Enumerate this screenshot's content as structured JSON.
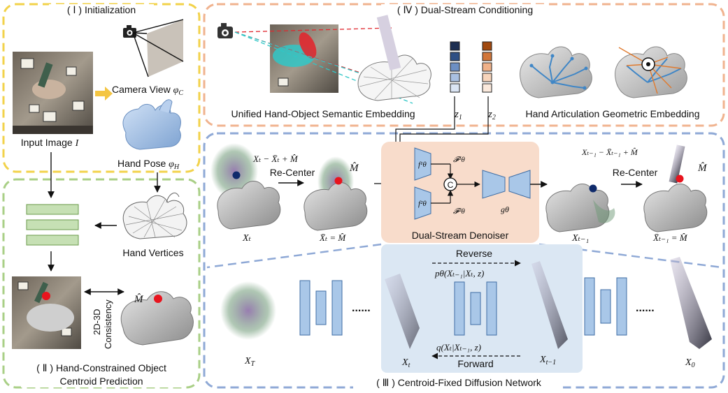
{
  "panels": {
    "p1": {
      "title": "( Ⅰ ) Initialization",
      "color": "#f2d24a"
    },
    "p2": {
      "title_line1": "( Ⅱ ) Hand-Constrained Object",
      "title_line2": "Centroid Prediction",
      "color": "#a9cf86"
    },
    "p3": {
      "title": "( Ⅲ ) Centroid-Fixed Diffusion Network",
      "color": "#8fa9d6"
    },
    "p4": {
      "title": "( Ⅳ ) Dual-Stream Conditioning",
      "color": "#f0b38f"
    }
  },
  "init": {
    "input_image": "Input Image",
    "input_image_var": "I",
    "camera_view": "Camera View",
    "camera_view_var": "φ",
    "camera_view_sub": "C",
    "hand_pose": "Hand Pose",
    "hand_pose_var": "φ",
    "hand_pose_sub": "H"
  },
  "centroid": {
    "hand_vertices": "Hand Vertices",
    "consistency_line1": "2D-3D",
    "consistency_line2": "Consistency",
    "m_hat": "M̂"
  },
  "conditioning": {
    "unified": "Unified Hand-Object Semantic Embedding",
    "geometric": "Hand Articulation Geometric Embedding",
    "z1": "z",
    "z1_sub": "1",
    "z2": "z",
    "z2_sub": "2",
    "z1_colors": [
      "#1d2f52",
      "#2f4f84",
      "#6d8fc3",
      "#a9c0e2",
      "#dbe5f4"
    ],
    "z2_colors": [
      "#a1490f",
      "#d1763a",
      "#efb189",
      "#f7d4bb",
      "#fbe9dc"
    ]
  },
  "diffusion": {
    "recenter_1": "Re-Center",
    "recenter_2": "Re-Center",
    "formula_1": "Xₜ − X̄ₜ + M̂",
    "formula_2": "Xₜ₋₁ − X̄ₜ₋₁ + M̂",
    "m_hat_1": "M̂",
    "m_hat_2": "M̂",
    "xt": "Xₜ",
    "xt_mean": "X̄ₜ = M̂",
    "xt1": "Xₜ₋₁",
    "xt1_mean": "X̄ₜ₋₁ = M̂",
    "denoiser": "Dual-Stream Denoiser",
    "f1": "f¹θ",
    "f2": "f²θ",
    "F1": "𝓕¹θ",
    "F2": "𝓕²θ",
    "concat": "C",
    "g": "gθ",
    "reverse": "Reverse",
    "forward": "Forward",
    "p_formula": "pθ(Xₜ₋₁|Xₜ, z)",
    "q_formula": "q(Xₜ|Xₜ₋₁, z)",
    "XT": "X",
    "XT_sub": "T",
    "Xt_b": "X",
    "Xt_b_sub": "t",
    "Xt1_b": "X",
    "Xt1_b_sub": "t−1",
    "X0": "X",
    "X0_sub": "0",
    "dots": "......"
  },
  "colors": {
    "green_block": "#c6e0b4",
    "green_block_border": "#6a9a4a",
    "net_blue": "#a9c7e8",
    "net_blue_border": "#3f6ea5",
    "denoiser_bg": "#f8dccb",
    "reverse_bg": "#dbe7f3",
    "red_dot": "#e8141e",
    "blue_dot": "#0f2a6b",
    "arrow_yellow": "#f4c542"
  }
}
